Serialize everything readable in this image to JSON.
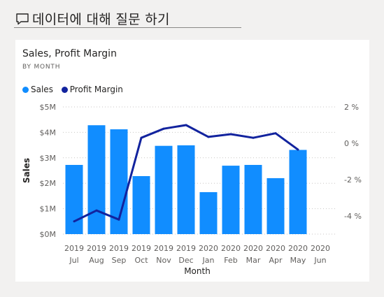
{
  "qa": {
    "text": "데이터에 대해 질문 하기",
    "icon": "chat-bubble-icon"
  },
  "colors": {
    "sales": "#118dff",
    "profit_margin": "#12239e"
  },
  "chart_data": {
    "type": "bar",
    "title": "Sales, Profit Margin",
    "subtitle": "BY MONTH",
    "xlabel": "Month",
    "ylabel": "Sales",
    "categories": [
      {
        "year": "2019",
        "month": "Jul"
      },
      {
        "year": "2019",
        "month": "Aug"
      },
      {
        "year": "2019",
        "month": "Sep"
      },
      {
        "year": "2019",
        "month": "Oct"
      },
      {
        "year": "2019",
        "month": "Nov"
      },
      {
        "year": "2019",
        "month": "Dec"
      },
      {
        "year": "2020",
        "month": "Jan"
      },
      {
        "year": "2020",
        "month": "Feb"
      },
      {
        "year": "2020",
        "month": "Mar"
      },
      {
        "year": "2020",
        "month": "Apr"
      },
      {
        "year": "2020",
        "month": "May"
      },
      {
        "year": "2020",
        "month": "Jun"
      }
    ],
    "series": [
      {
        "name": "Sales",
        "type": "bar",
        "axis": "left",
        "values": [
          2.72,
          4.28,
          4.12,
          2.28,
          3.47,
          3.49,
          1.65,
          2.69,
          2.72,
          2.2,
          3.31,
          null
        ]
      },
      {
        "name": "Profit Margin",
        "type": "line",
        "axis": "right",
        "values": [
          -4.3,
          -3.7,
          -4.2,
          0.3,
          0.8,
          1.0,
          0.35,
          0.5,
          0.3,
          0.55,
          -0.35,
          null
        ]
      }
    ],
    "y_left": {
      "ticks": [
        0,
        1,
        2,
        3,
        4,
        5
      ],
      "tick_labels": [
        "$0M",
        "$1M",
        "$2M",
        "$3M",
        "$4M",
        "$5M"
      ],
      "range": [
        0,
        5
      ]
    },
    "y_right": {
      "ticks": [
        2,
        0,
        -2,
        -4
      ],
      "tick_labels": [
        "2 %",
        "0 %",
        "-2 %",
        "-4 %"
      ],
      "range": [
        -5,
        2
      ]
    },
    "grid": true,
    "legend_position": "top-left"
  }
}
